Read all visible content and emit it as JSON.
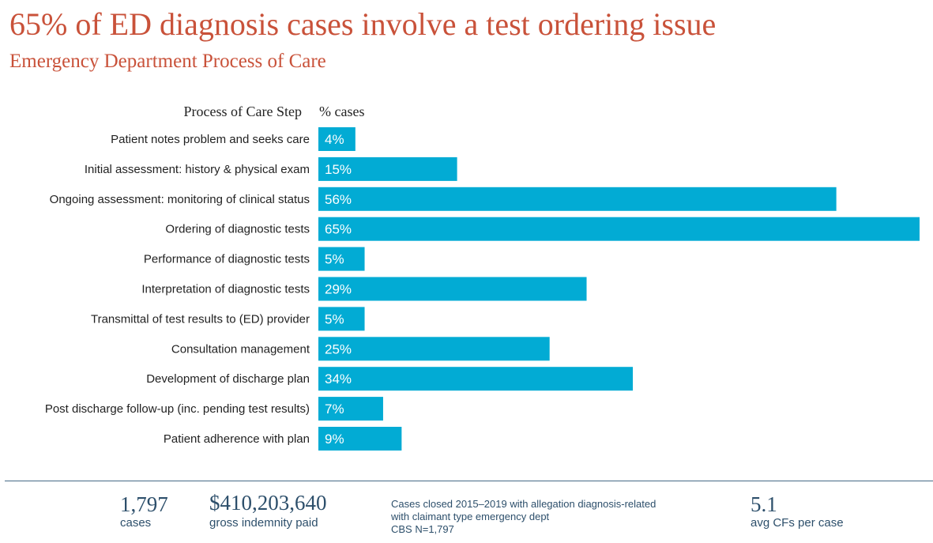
{
  "header": {
    "title": "65% of ED diagnosis cases involve a test ordering issue",
    "subtitle": "Emergency Department Process of Care"
  },
  "colors": {
    "title": "#c9523a",
    "bar": "#02abd4",
    "footer_text": "#2d4f6b"
  },
  "chart_data": {
    "type": "bar",
    "orientation": "horizontal",
    "category_header": "Process of Care Step",
    "value_header": "% cases",
    "categories": [
      "Patient notes problem and seeks care",
      "Initial assessment: history & physical exam",
      "Ongoing assessment: monitoring of clinical status",
      "Ordering of diagnostic tests",
      "Performance of diagnostic tests",
      "Interpretation of diagnostic tests",
      "Transmittal of test results to (ED) provider",
      "Consultation management",
      "Development of discharge plan",
      "Post discharge follow-up (inc. pending test results)",
      "Patient adherence with plan"
    ],
    "values": [
      4,
      15,
      56,
      65,
      5,
      29,
      5,
      25,
      34,
      7,
      9
    ],
    "value_labels": [
      "4%",
      "15%",
      "56%",
      "65%",
      "5%",
      "29%",
      "5%",
      "25%",
      "34%",
      "7%",
      "9%"
    ],
    "grid": false,
    "legend": "none"
  },
  "footer": {
    "stats": [
      {
        "number": "1,797",
        "label": "cases"
      },
      {
        "number": "$410,203,640",
        "label": "gross indemnity paid"
      },
      {
        "number": "5.1",
        "label": "avg CFs per case"
      }
    ],
    "note_lines": [
      "Cases closed 2015–2019 with allegation diagnosis-related",
      "with claimant type emergency dept",
      "CBS N=1,797"
    ]
  }
}
